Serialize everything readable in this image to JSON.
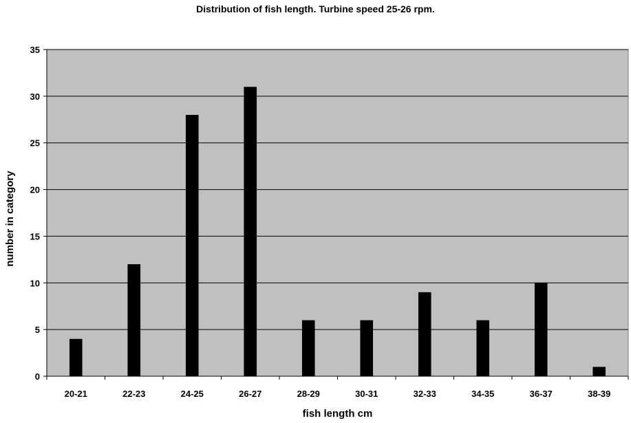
{
  "chart_data": {
    "type": "bar",
    "title": "Distribution of fish length. Turbine speed 25-26 rpm.",
    "xlabel": "fish length cm",
    "ylabel": "number in category",
    "categories": [
      "20-21",
      "22-23",
      "24-25",
      "26-27",
      "28-29",
      "30-31",
      "32-33",
      "34-35",
      "36-37",
      "38-39"
    ],
    "values": [
      4,
      12,
      28,
      31,
      6,
      6,
      9,
      6,
      10,
      1
    ],
    "ylim": [
      0,
      35
    ],
    "yticks": [
      0,
      5,
      10,
      15,
      20,
      25,
      30,
      35
    ],
    "grid": true,
    "legend": "none",
    "colors": {
      "plot_background": "#c0c0c0",
      "bar": "#000000",
      "gridline": "#000000"
    }
  }
}
